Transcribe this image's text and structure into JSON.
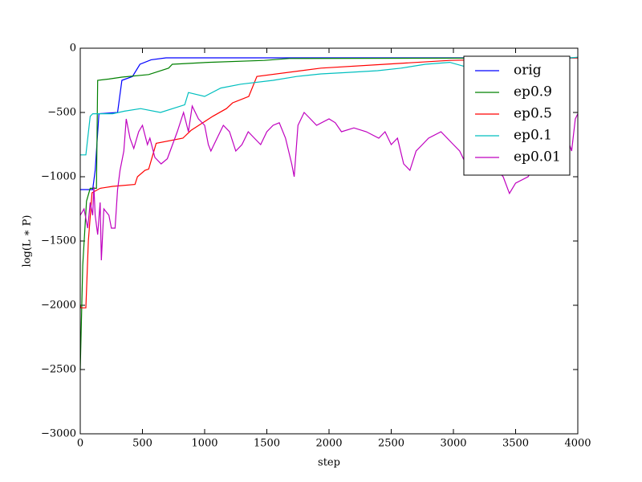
{
  "chart_data": {
    "type": "line",
    "xlabel": "step",
    "ylabel": "log(L ∗ P)",
    "xlim": [
      0,
      4000
    ],
    "ylim": [
      -3000,
      0
    ],
    "xticks": [
      0,
      500,
      1000,
      1500,
      2000,
      2500,
      3000,
      3500,
      4000
    ],
    "yticks": [
      {
        "value": -3000,
        "label": "−3000"
      },
      {
        "value": -2500,
        "label": "−2500"
      },
      {
        "value": -2000,
        "label": "−2000"
      },
      {
        "value": -1500,
        "label": "−1500"
      },
      {
        "value": -1000,
        "label": "−1000"
      },
      {
        "value": -500,
        "label": "−500"
      },
      0
    ],
    "legend": "upper right",
    "series": [
      {
        "name": "orig",
        "color": "#0000ff",
        "x": [
          0,
          100,
          120,
          150,
          300,
          335,
          420,
          480,
          570,
          690,
          4000
        ],
        "values": [
          -1100,
          -1100,
          -950,
          -510,
          -500,
          -250,
          -220,
          -125,
          -90,
          -75,
          -75
        ]
      },
      {
        "name": "ep0.9",
        "color": "#008000",
        "x": [
          0,
          20,
          50,
          80,
          130,
          140,
          230,
          335,
          550,
          710,
          740,
          1030,
          1480,
          1680,
          4000
        ],
        "values": [
          -2500,
          -1690,
          -1190,
          -1090,
          -1090,
          -250,
          -240,
          -225,
          -205,
          -155,
          -125,
          -110,
          -95,
          -80,
          -75
        ]
      },
      {
        "name": "ep0.5",
        "color": "#ff0000",
        "x": [
          0,
          5,
          45,
          65,
          95,
          160,
          260,
          440,
          460,
          520,
          550,
          610,
          825,
          890,
          1065,
          1175,
          1225,
          1355,
          1420,
          1935,
          2450,
          2970,
          4000
        ],
        "values": [
          -2000,
          -2020,
          -2020,
          -1500,
          -1125,
          -1090,
          -1075,
          -1060,
          -1000,
          -950,
          -940,
          -740,
          -700,
          -640,
          -530,
          -470,
          -425,
          -375,
          -220,
          -155,
          -125,
          -95,
          -75
        ]
      },
      {
        "name": "ep0.1",
        "color": "#00bfbf",
        "x": [
          0,
          45,
          80,
          100,
          260,
          355,
          485,
          645,
          840,
          870,
          1000,
          1130,
          1290,
          1550,
          1740,
          1935,
          2130,
          2390,
          2580,
          2775,
          2970,
          3100,
          4000
        ],
        "values": [
          -830,
          -830,
          -530,
          -510,
          -510,
          -490,
          -470,
          -500,
          -440,
          -345,
          -375,
          -310,
          -280,
          -250,
          -220,
          -200,
          -190,
          -175,
          -155,
          -125,
          -110,
          -145,
          -70
        ]
      },
      {
        "name": "ep0.01",
        "color": "#bf00bf",
        "x": [
          0,
          30,
          60,
          80,
          100,
          110,
          120,
          140,
          160,
          170,
          190,
          230,
          250,
          280,
          300,
          320,
          350,
          370,
          400,
          430,
          470,
          500,
          540,
          560,
          600,
          650,
          700,
          780,
          830,
          870,
          900,
          950,
          1000,
          1030,
          1050,
          1100,
          1150,
          1200,
          1250,
          1300,
          1350,
          1400,
          1450,
          1500,
          1550,
          1600,
          1650,
          1700,
          1720,
          1750,
          1800,
          1850,
          1900,
          2000,
          2050,
          2100,
          2200,
          2300,
          2400,
          2450,
          2500,
          2550,
          2600,
          2650,
          2700,
          2750,
          2800,
          2900,
          3000,
          3050,
          3100,
          3150,
          3200,
          3300,
          3400,
          3450,
          3500,
          3600,
          3700,
          3800,
          3900,
          3950,
          3980,
          4000
        ],
        "values": [
          -1300,
          -1250,
          -1400,
          -1200,
          -1300,
          -1080,
          -1300,
          -1450,
          -1200,
          -1650,
          -1250,
          -1300,
          -1400,
          -1400,
          -1100,
          -950,
          -800,
          -550,
          -700,
          -780,
          -650,
          -600,
          -750,
          -700,
          -850,
          -900,
          -860,
          -650,
          -500,
          -650,
          -450,
          -550,
          -600,
          -750,
          -800,
          -700,
          -600,
          -650,
          -800,
          -750,
          -650,
          -700,
          -750,
          -650,
          -600,
          -580,
          -700,
          -900,
          -1000,
          -600,
          -500,
          -550,
          -600,
          -550,
          -580,
          -650,
          -620,
          -650,
          -700,
          -650,
          -750,
          -700,
          -900,
          -950,
          -800,
          -750,
          -700,
          -650,
          -750,
          -800,
          -900,
          -850,
          -800,
          -900,
          -1000,
          -1130,
          -1050,
          -1000,
          -850,
          -850,
          -650,
          -800,
          -550,
          -510
        ]
      }
    ]
  }
}
